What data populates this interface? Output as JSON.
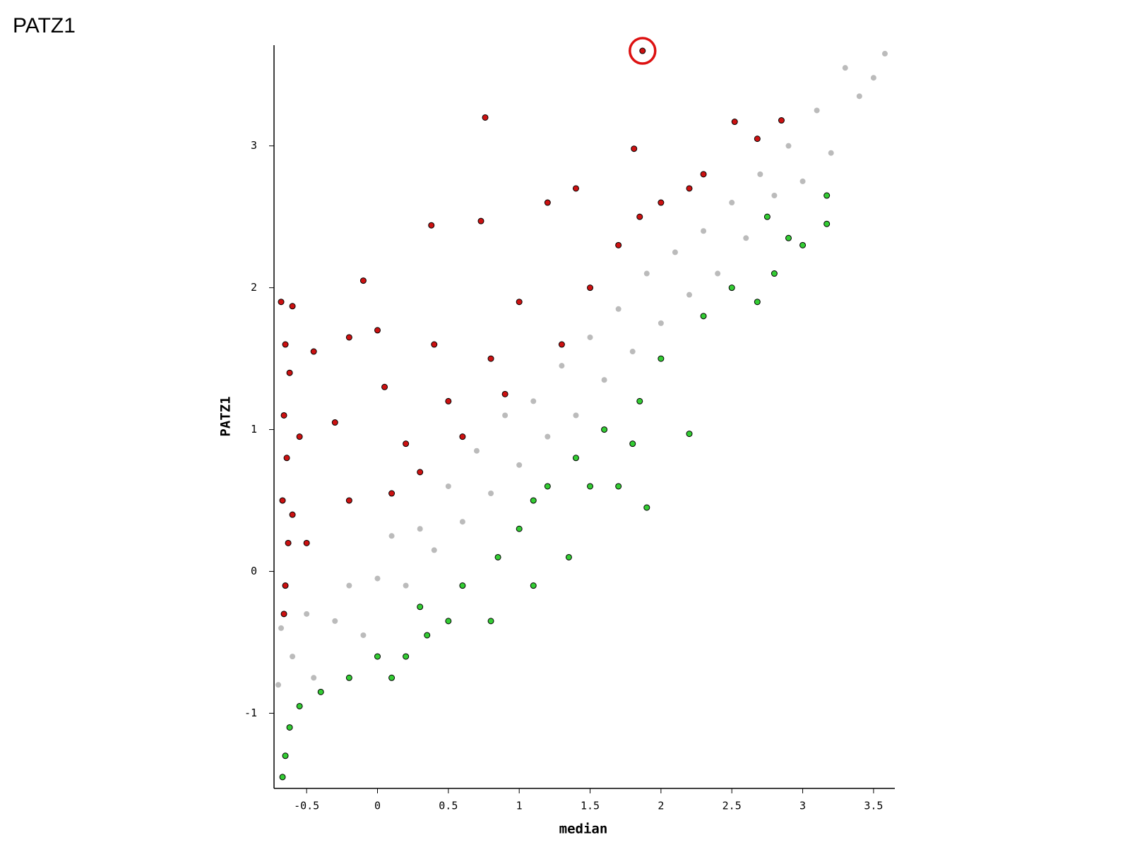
{
  "chart_data": {
    "type": "scatter",
    "title": "PATZ1",
    "xlabel": "median",
    "ylabel": "PATZ1",
    "xlim": [
      -0.73,
      3.65
    ],
    "ylim": [
      -1.53,
      3.71
    ],
    "xticks": [
      -0.5,
      0,
      0.5,
      1,
      1.5,
      2,
      2.5,
      3,
      3.5
    ],
    "yticks": [
      -1,
      0,
      1,
      2,
      3
    ],
    "grid": false,
    "series": [
      {
        "color": "#bbbbbb",
        "x": [
          -0.7,
          -0.68,
          -0.6,
          -0.5,
          -0.45,
          -0.3,
          -0.2,
          -0.1,
          0,
          0.1,
          0.2,
          0.3,
          0.4,
          0.5,
          0.6,
          0.7,
          0.8,
          0.9,
          1.0,
          1.1,
          1.2,
          1.3,
          1.4,
          1.5,
          1.6,
          1.7,
          1.8,
          1.9,
          2.0,
          2.1,
          2.2,
          2.3,
          2.4,
          2.5,
          2.6,
          2.7,
          2.8,
          2.9,
          3.0,
          3.1,
          3.2,
          3.3,
          3.4,
          3.5,
          3.58
        ],
        "values": [
          -0.8,
          -0.4,
          -0.6,
          -0.3,
          -0.75,
          -0.35,
          -0.1,
          -0.45,
          -0.05,
          0.25,
          -0.1,
          0.3,
          0.15,
          0.6,
          0.35,
          0.85,
          0.55,
          1.1,
          0.75,
          1.2,
          0.95,
          1.45,
          1.1,
          1.65,
          1.35,
          1.85,
          1.55,
          2.1,
          1.75,
          2.25,
          1.95,
          2.4,
          2.1,
          2.6,
          2.35,
          2.8,
          2.65,
          3.0,
          2.75,
          3.25,
          2.95,
          3.55,
          3.35,
          3.48,
          3.65
        ]
      },
      {
        "color": "#cc1111",
        "x": [
          -0.68,
          -0.6,
          -0.65,
          -0.62,
          -0.66,
          -0.64,
          -0.67,
          -0.63,
          -0.65,
          -0.66,
          -0.6,
          -0.55,
          -0.45,
          -0.3,
          -0.2,
          -0.1,
          0,
          0.05,
          0.2,
          0.38,
          0.4,
          0.5,
          0.6,
          0.76,
          0.73,
          0.8,
          1,
          1.2,
          1.3,
          1.4,
          1.5,
          1.7,
          1.81,
          1.85,
          2.0,
          2.3,
          2.52,
          2.68,
          2.85,
          -0.2,
          0.1,
          0.9,
          2.2,
          -0.5,
          0.3
        ],
        "values": [
          1.9,
          1.87,
          1.6,
          1.4,
          1.1,
          0.8,
          0.5,
          0.2,
          -0.1,
          -0.3,
          0.4,
          0.95,
          1.55,
          1.05,
          1.65,
          2.05,
          1.7,
          1.3,
          0.9,
          2.44,
          1.6,
          1.2,
          0.95,
          3.2,
          2.47,
          1.5,
          1.9,
          2.6,
          1.6,
          2.7,
          2.0,
          2.3,
          2.98,
          2.5,
          2.6,
          2.8,
          3.17,
          3.05,
          3.18,
          0.5,
          0.55,
          1.25,
          2.7,
          0.2,
          0.7
        ]
      },
      {
        "color": "#33cc33",
        "x": [
          -0.67,
          -0.65,
          -0.62,
          -0.55,
          -0.4,
          -0.2,
          0.1,
          0.2,
          0.35,
          0.5,
          0.6,
          0.8,
          0.85,
          1.0,
          1.1,
          1.2,
          1.35,
          1.4,
          1.5,
          1.6,
          1.7,
          1.9,
          1.85,
          2.0,
          2.2,
          2.3,
          2.5,
          2.68,
          2.8,
          2.9,
          3.0,
          3.17,
          3.17,
          2.75,
          1.1,
          0.3,
          0.0,
          1.8
        ],
        "values": [
          -1.45,
          -1.3,
          -1.1,
          -0.95,
          -0.85,
          -0.75,
          -0.75,
          -0.6,
          -0.45,
          -0.35,
          -0.1,
          -0.35,
          0.1,
          0.3,
          -0.1,
          0.6,
          0.1,
          0.8,
          0.6,
          1.0,
          0.6,
          0.45,
          1.2,
          1.5,
          0.97,
          1.8,
          2.0,
          1.9,
          2.1,
          2.35,
          2.3,
          2.65,
          2.45,
          2.5,
          0.5,
          -0.25,
          -0.6,
          0.9
        ]
      }
    ],
    "highlighted_point": {
      "x": 1.87,
      "y": 3.67,
      "color": "#cc1111",
      "ring_color": "#dd1111"
    }
  }
}
